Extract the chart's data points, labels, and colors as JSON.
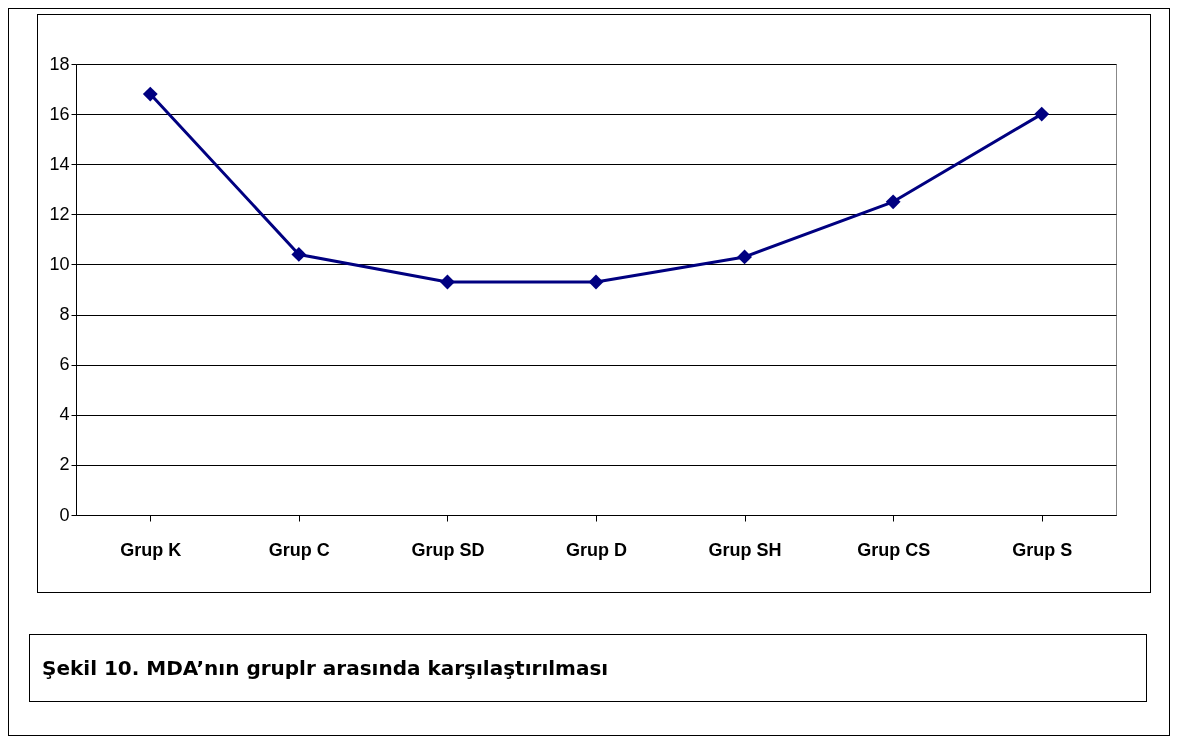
{
  "chart_data": {
    "type": "line",
    "categories": [
      "Grup K",
      "Grup C",
      "Grup SD",
      "Grup D",
      "Grup SH",
      "Grup CS",
      "Grup S"
    ],
    "series": [
      {
        "color": "#000080",
        "values": [
          16.8,
          10.4,
          9.3,
          9.3,
          10.3,
          12.5,
          16.0
        ]
      }
    ],
    "ylim": [
      0,
      18
    ],
    "yticks": [
      0,
      2,
      4,
      6,
      8,
      10,
      12,
      14,
      16,
      18
    ],
    "grid": "y",
    "marker": "diamond",
    "annotations": [
      "Şekil 10. MDA’nın gruplr arasında karşılaştırılması"
    ]
  }
}
